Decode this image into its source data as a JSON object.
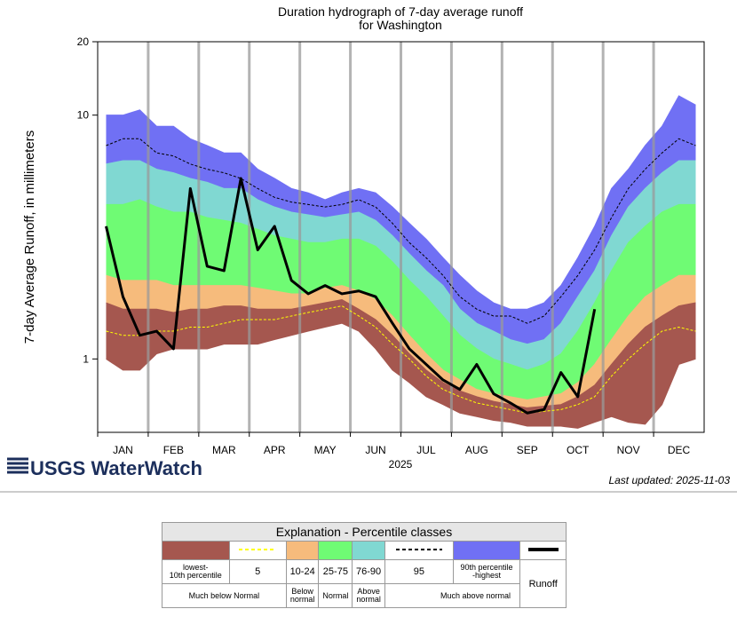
{
  "chart_data": {
    "type": "line",
    "title": "Duration hydrograph of 7-day average runoff",
    "subtitle": "for Washington",
    "ylabel": "7-day Average Runoff, in millimeters",
    "xlabel": "2025",
    "log_y": true,
    "ylim": [
      0.5,
      20
    ],
    "yticks": [
      1,
      10,
      20
    ],
    "categories": [
      null,
      "JAN",
      null,
      null,
      "FEB",
      null,
      null,
      "MAR",
      null,
      null,
      "APR",
      null,
      null,
      "MAY",
      null,
      null,
      "JUN",
      null,
      null,
      "JUL",
      null,
      null,
      "AUG",
      null,
      null,
      "SEP",
      null,
      null,
      "OCT",
      null,
      null,
      "NOV",
      null,
      null,
      "DEC",
      null
    ],
    "band_edges": [
      {
        "fill": "#7070f4",
        "values": [
          10,
          10,
          10.5,
          9,
          9,
          8,
          7.5,
          7,
          7,
          6,
          5.5,
          5,
          4.8,
          4.5,
          4.8,
          5,
          4.8,
          4.2,
          3.6,
          3.1,
          2.6,
          2.2,
          1.9,
          1.7,
          1.6,
          1.6,
          1.7,
          2,
          2.6,
          3.5,
          5,
          6,
          7.5,
          9,
          12,
          11
        ]
      },
      {
        "fill": "#80d8d2",
        "values": [
          6.3,
          6.5,
          6.5,
          6,
          5.8,
          5.5,
          5.3,
          5,
          5,
          4.5,
          4.2,
          4,
          3.9,
          3.8,
          3.9,
          4,
          3.7,
          3.2,
          2.7,
          2.3,
          2,
          1.6,
          1.4,
          1.3,
          1.2,
          1.15,
          1.2,
          1.4,
          1.8,
          2.3,
          3.2,
          4.2,
          5,
          5.8,
          6.5,
          6.5
        ]
      },
      {
        "fill": "#6ffb74",
        "values": [
          4.3,
          4.3,
          4.5,
          4.2,
          4,
          4,
          3.8,
          3.7,
          3.6,
          3.4,
          3.2,
          3.1,
          3,
          3,
          3.1,
          3.1,
          2.9,
          2.5,
          2.1,
          1.8,
          1.5,
          1.25,
          1.1,
          1,
          0.95,
          0.9,
          0.95,
          1.05,
          1.3,
          1.7,
          2.3,
          3,
          3.5,
          4,
          4.3,
          4.3
        ]
      },
      {
        "fill": "#f6bb7c",
        "values": [
          2.2,
          2.1,
          2.1,
          2.1,
          2,
          2,
          2,
          2,
          2,
          1.95,
          1.9,
          1.85,
          1.85,
          1.95,
          2,
          1.9,
          1.75,
          1.5,
          1.25,
          1.05,
          0.9,
          0.82,
          0.75,
          0.72,
          0.7,
          0.68,
          0.7,
          0.72,
          0.8,
          0.95,
          1.2,
          1.5,
          1.8,
          2,
          2.2,
          2.2
        ]
      },
      {
        "fill": "#a5574f",
        "values": [
          1.7,
          1.6,
          1.6,
          1.6,
          1.55,
          1.6,
          1.6,
          1.65,
          1.65,
          1.6,
          1.6,
          1.6,
          1.65,
          1.7,
          1.75,
          1.6,
          1.45,
          1.25,
          1.05,
          0.9,
          0.8,
          0.74,
          0.7,
          0.67,
          0.65,
          0.63,
          0.64,
          0.65,
          0.7,
          0.78,
          0.95,
          1.15,
          1.35,
          1.5,
          1.65,
          1.7
        ]
      },
      {
        "fill": null,
        "values": [
          1,
          0.9,
          0.9,
          1.05,
          1.1,
          1.1,
          1.1,
          1.15,
          1.15,
          1.15,
          1.2,
          1.25,
          1.3,
          1.35,
          1.4,
          1.3,
          1.1,
          0.9,
          0.8,
          0.7,
          0.65,
          0.6,
          0.58,
          0.56,
          0.55,
          0.53,
          0.53,
          0.53,
          0.52,
          0.55,
          0.58,
          0.55,
          0.54,
          0.65,
          0.95,
          1
        ]
      }
    ],
    "series": [
      {
        "name": "5",
        "color": "#ffff00",
        "dash": true,
        "width": 1,
        "values": [
          1.3,
          1.25,
          1.25,
          1.3,
          1.3,
          1.35,
          1.35,
          1.4,
          1.45,
          1.45,
          1.45,
          1.5,
          1.55,
          1.6,
          1.65,
          1.5,
          1.35,
          1.15,
          1,
          0.85,
          0.75,
          0.7,
          0.66,
          0.64,
          0.62,
          0.6,
          0.61,
          0.62,
          0.65,
          0.7,
          0.85,
          1,
          1.15,
          1.3,
          1.35,
          1.3
        ]
      },
      {
        "name": "95",
        "color": "#000000",
        "dash": true,
        "width": 1,
        "values": [
          7.5,
          8,
          8,
          7,
          6.8,
          6.3,
          6,
          5.8,
          5.5,
          5,
          4.6,
          4.4,
          4.3,
          4.2,
          4.3,
          4.5,
          4.2,
          3.6,
          3,
          2.6,
          2.2,
          1.8,
          1.6,
          1.5,
          1.5,
          1.4,
          1.5,
          1.8,
          2.2,
          2.8,
          3.8,
          5,
          6,
          7,
          8,
          7.5
        ]
      },
      {
        "name": "Runoff",
        "color": "#000000",
        "dash": false,
        "width": 3,
        "values": [
          3.5,
          1.8,
          1.25,
          1.3,
          1.1,
          5,
          2.4,
          2.3,
          5.5,
          2.8,
          3.5,
          2.1,
          1.85,
          2,
          1.85,
          1.9,
          1.8,
          1.4,
          1.1,
          0.95,
          0.82,
          0.75,
          0.95,
          0.72,
          0.66,
          0.6,
          0.62,
          0.88,
          0.7,
          1.6,
          null,
          null,
          null,
          null,
          null,
          null
        ]
      }
    ],
    "grid": true
  },
  "logo": "USGS WaterWatch",
  "last_updated": "Last updated: 2025-11-03",
  "legend": {
    "title": "Explanation - Percentile classes",
    "classes": [
      "lowest-\n10th percentile",
      "10-24",
      "25-75",
      "76-90",
      "90th percentile\n-highest"
    ],
    "groups": [
      "Much below Normal",
      "Below\nnormal",
      "Normal",
      "Above\nnormal",
      "Much above normal"
    ]
  }
}
